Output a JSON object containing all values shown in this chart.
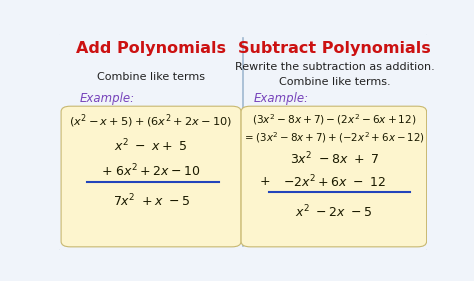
{
  "fig_w": 4.74,
  "fig_h": 2.81,
  "dpi": 100,
  "bg_color": "#f0f4fa",
  "panel_bg": "#fdf5ce",
  "border_color": "#a0b8d0",
  "divider_color": "#a0b8d0",
  "title_left": "Add Polynomials",
  "title_right": "Subtract Polynomials",
  "title_color": "#cc1111",
  "subtitle_left": "Combine like terms",
  "subtitle_right_1": "Rewrite the subtraction as addition.",
  "subtitle_right_2": "Combine like terms.",
  "subtitle_color": "#222222",
  "example_color": "#7744bb",
  "example_text": "Example:",
  "math_color": "#1a1a00",
  "line_color_underline": "#2244bb",
  "title_fontsize": 11.5,
  "subtitle_fontsize": 8.0,
  "example_fontsize": 8.5,
  "math_fontsize_lg": 9.0,
  "math_fontsize_sm": 7.8
}
